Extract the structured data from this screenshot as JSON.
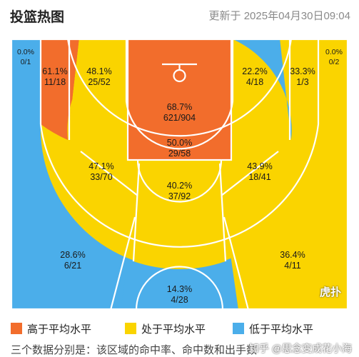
{
  "header": {
    "title": "投篮热图",
    "updated": "更新于 2025年04月30日09:04"
  },
  "colors": {
    "above": "#F26D2C",
    "average": "#FAD400",
    "below": "#4BAEEA",
    "lines": "#ffffff"
  },
  "chart_data": {
    "type": "heatmap",
    "title": "投篮热图",
    "zones": [
      {
        "id": "left-corner-3",
        "pct": "0.0%",
        "made_att": "0/1",
        "level": "below"
      },
      {
        "id": "left-baseline-mid",
        "pct": "61.1%",
        "made_att": "11/18",
        "level": "above"
      },
      {
        "id": "left-short-mid",
        "pct": "48.1%",
        "made_att": "25/52",
        "level": "average"
      },
      {
        "id": "restricted-area",
        "pct": "68.7%",
        "made_att": "621/904",
        "level": "above"
      },
      {
        "id": "right-short-mid",
        "pct": "22.2%",
        "made_att": "4/18",
        "level": "below"
      },
      {
        "id": "right-baseline-mid",
        "pct": "33.3%",
        "made_att": "1/3",
        "level": "average"
      },
      {
        "id": "right-corner-3",
        "pct": "0.0%",
        "made_att": "0/2",
        "level": "below"
      },
      {
        "id": "paint-non-ra",
        "pct": "50.0%",
        "made_att": "29/58",
        "level": "above"
      },
      {
        "id": "left-wing-mid",
        "pct": "47.1%",
        "made_att": "33/70",
        "level": "average"
      },
      {
        "id": "top-key-mid",
        "pct": "40.2%",
        "made_att": "37/92",
        "level": "average"
      },
      {
        "id": "right-wing-mid",
        "pct": "43.9%",
        "made_att": "18/41",
        "level": "average"
      },
      {
        "id": "left-wing-3",
        "pct": "28.6%",
        "made_att": "6/21",
        "level": "below"
      },
      {
        "id": "top-3",
        "pct": "14.3%",
        "made_att": "4/28",
        "level": "below"
      },
      {
        "id": "right-wing-3",
        "pct": "36.4%",
        "made_att": "4/11",
        "level": "average"
      }
    ]
  },
  "legend": {
    "items": [
      {
        "label": "高于平均水平",
        "level": "above"
      },
      {
        "label": "处于平均水平",
        "level": "average"
      },
      {
        "label": "低于平均水平",
        "level": "below"
      }
    ]
  },
  "footnote": "三个数据分别是：该区域的命中率、命中数和出手数",
  "watermark": "知乎 @思念变成花小海",
  "logo": "虎扑"
}
